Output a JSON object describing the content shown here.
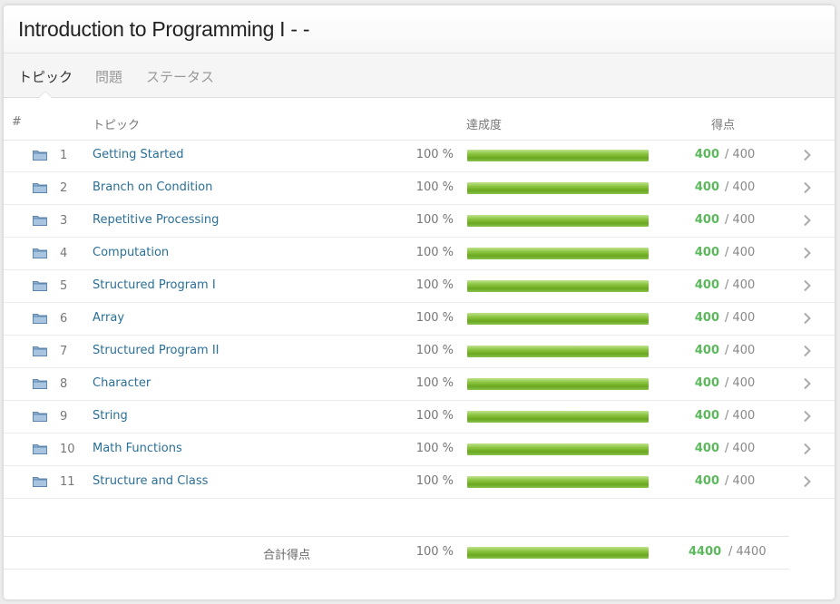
{
  "header": {
    "title": "Introduction to Programming I - -"
  },
  "tabs": [
    {
      "label": "トピック",
      "active": true
    },
    {
      "label": "問題",
      "active": false
    },
    {
      "label": "ステータス",
      "active": false
    }
  ],
  "table": {
    "columns": {
      "num": "#",
      "topic": "トピック",
      "progress": "達成度",
      "score": "得点"
    },
    "rows": [
      {
        "index": "1",
        "topic": "Getting Started",
        "percent": "100 %",
        "progress": 1.0,
        "score": "400",
        "max": "/ 400"
      },
      {
        "index": "2",
        "topic": "Branch on Condition",
        "percent": "100 %",
        "progress": 1.0,
        "score": "400",
        "max": "/ 400"
      },
      {
        "index": "3",
        "topic": "Repetitive Processing",
        "percent": "100 %",
        "progress": 1.0,
        "score": "400",
        "max": "/ 400"
      },
      {
        "index": "4",
        "topic": "Computation",
        "percent": "100 %",
        "progress": 1.0,
        "score": "400",
        "max": "/ 400"
      },
      {
        "index": "5",
        "topic": "Structured Program I",
        "percent": "100 %",
        "progress": 1.0,
        "score": "400",
        "max": "/ 400"
      },
      {
        "index": "6",
        "topic": "Array",
        "percent": "100 %",
        "progress": 1.0,
        "score": "400",
        "max": "/ 400"
      },
      {
        "index": "7",
        "topic": "Structured Program II",
        "percent": "100 %",
        "progress": 1.0,
        "score": "400",
        "max": "/ 400"
      },
      {
        "index": "8",
        "topic": "Character",
        "percent": "100 %",
        "progress": 1.0,
        "score": "400",
        "max": "/ 400"
      },
      {
        "index": "9",
        "topic": "String",
        "percent": "100 %",
        "progress": 1.0,
        "score": "400",
        "max": "/ 400"
      },
      {
        "index": "10",
        "topic": "Math Functions",
        "percent": "100 %",
        "progress": 1.0,
        "score": "400",
        "max": "/ 400"
      },
      {
        "index": "11",
        "topic": "Structure and Class",
        "percent": "100 %",
        "progress": 1.0,
        "score": "400",
        "max": "/ 400"
      }
    ]
  },
  "total": {
    "label": "合計得点",
    "percent": "100 %",
    "progress": 1.0,
    "score": "4400",
    "max": "/ 4400"
  },
  "icons": {
    "folder": "folder-icon",
    "chevron": "chevron-right-icon"
  },
  "colors": {
    "link": "#2a6f97",
    "score": "#5cb85c",
    "bar": "#7ab82f"
  }
}
